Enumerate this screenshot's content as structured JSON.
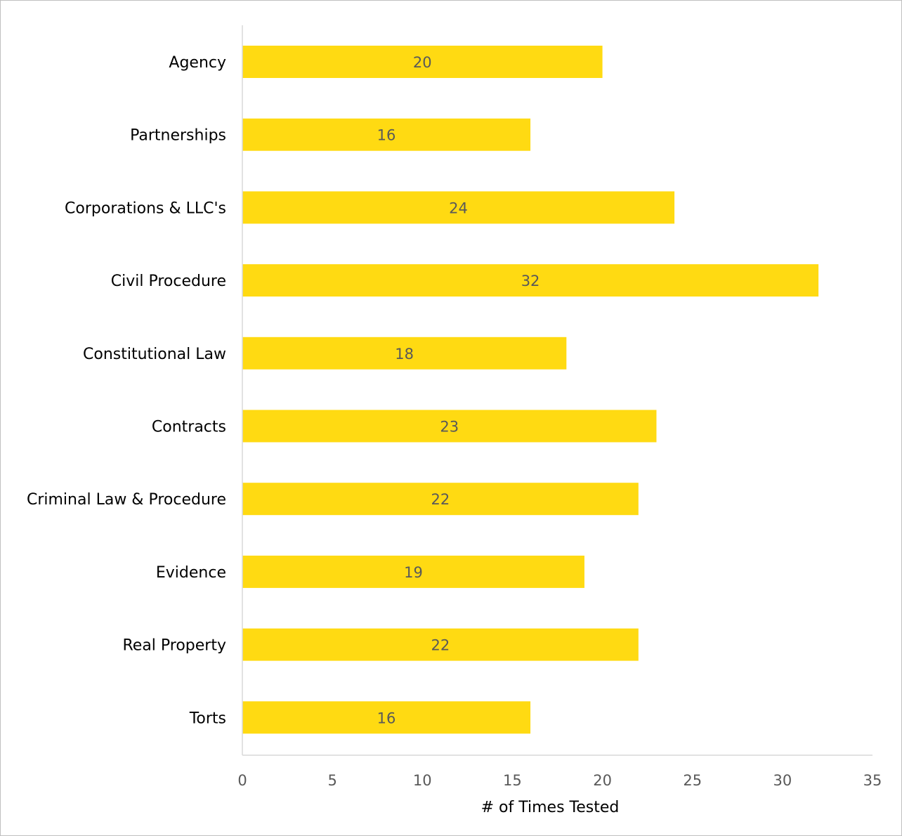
{
  "chart_data": {
    "type": "bar",
    "orientation": "horizontal",
    "categories": [
      "Agency",
      "Partnerships",
      "Corporations & LLC's",
      "Civil Procedure",
      "Constitutional Law",
      "Contracts",
      "Criminal Law & Procedure",
      "Evidence",
      "Real Property",
      "Torts"
    ],
    "values": [
      20,
      16,
      24,
      32,
      18,
      23,
      22,
      19,
      22,
      16
    ],
    "xlabel": "# of Times Tested",
    "xlim": [
      0,
      35
    ],
    "xticks": [
      "0",
      "5",
      "10",
      "15",
      "20",
      "25",
      "30",
      "35"
    ],
    "bar_color": "#FFDA12",
    "data_labels": true,
    "grid": false
  }
}
